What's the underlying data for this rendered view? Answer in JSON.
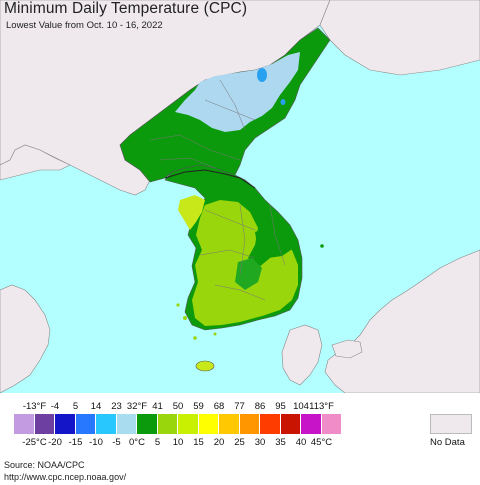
{
  "header": {
    "title": "Minimum Daily Temperature (CPC)",
    "subtitle": "Lowest Value from Oct. 10 - 16, 2022"
  },
  "colors": {
    "ocean": "#b3ffff",
    "land_nodata": "#efe9ee",
    "cold_blue": "#add8f0",
    "green_dark": "#0b9a0b",
    "green_mid": "#21a821",
    "lime": "#99d60b",
    "yellow_green": "#c8e81a",
    "border": "#777777"
  },
  "legend": {
    "fahrenheit_ticks": [
      "-13°F",
      "-4",
      "5",
      "14",
      "23",
      "32°F",
      "41",
      "50",
      "59",
      "68",
      "77",
      "86",
      "95",
      "104",
      "113°F"
    ],
    "celsius_ticks": [
      "-25°C",
      "-20",
      "-15",
      "-10",
      "-5",
      "0°C",
      "5",
      "10",
      "15",
      "20",
      "25",
      "30",
      "35",
      "40",
      "45°C"
    ],
    "swatches": [
      "#c39be0",
      "#6c3fa0",
      "#1414c8",
      "#2878ff",
      "#28c8ff",
      "#aadcf0",
      "#0b9a0b",
      "#99d60b",
      "#c8f000",
      "#ffff00",
      "#ffc800",
      "#ff9600",
      "#ff3c00",
      "#c81400",
      "#c814c8",
      "#f08cc8"
    ],
    "no_data_label": "No Data",
    "no_data_color": "#efe9ee"
  },
  "footer": {
    "source": "Source: NOAA/CPC",
    "url": "http://www.cpc.ncep.noaa.gov/"
  }
}
